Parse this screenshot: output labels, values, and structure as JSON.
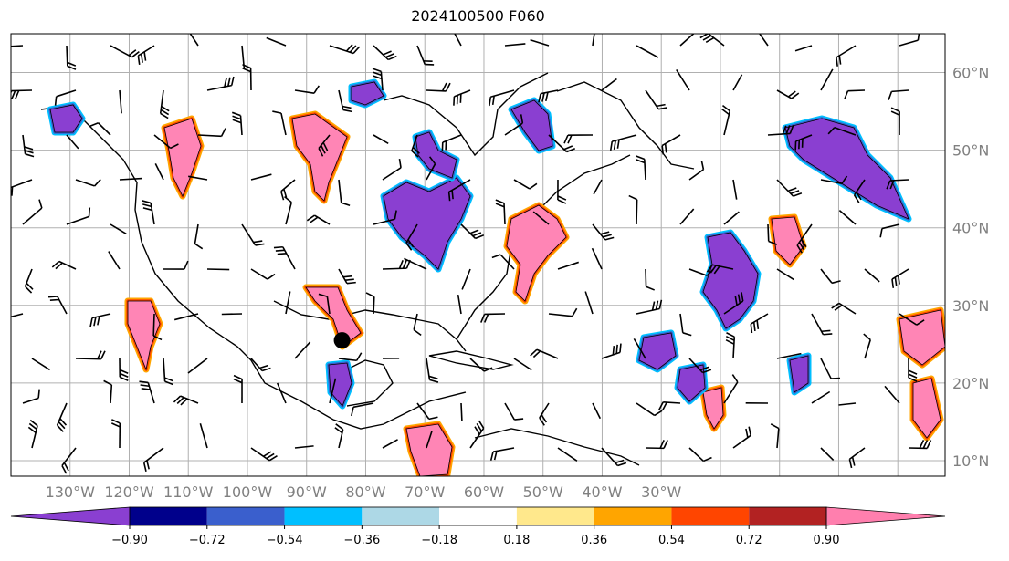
{
  "title": "2024100500 F060",
  "map": {
    "lon_range": [
      -140,
      18
    ],
    "lat_range": [
      8,
      65
    ],
    "lat_ticks": [
      "10°N",
      "20°N",
      "30°N",
      "40°N",
      "50°N",
      "60°N"
    ],
    "lon_ticks": [
      "130°W",
      "120°W",
      "110°W",
      "100°W",
      "90°W",
      "80°W",
      "70°W",
      "60°W",
      "50°W",
      "40°W",
      "30°W"
    ],
    "gridlines": true,
    "marker": {
      "lon": -84,
      "lat": 25.5,
      "color": "#000000"
    }
  },
  "colorbar": {
    "labels": [
      "−0.90",
      "−0.72",
      "−0.54",
      "−0.36",
      "−0.18",
      "0.18",
      "0.36",
      "0.54",
      "0.72",
      "0.90"
    ],
    "colors": [
      "#8a3fd1",
      "#00008b",
      "#3a5fcd",
      "#00bfff",
      "#add8e6",
      "#ffffff",
      "#ffe88c",
      "#ffa500",
      "#ff4500",
      "#b22222",
      "#ff7fae"
    ],
    "extend": "both"
  },
  "colors": {
    "grid": "#b0b0b0",
    "coast": "#000000",
    "positive": "#ff85b5",
    "negative": "#8a3fd1"
  }
}
